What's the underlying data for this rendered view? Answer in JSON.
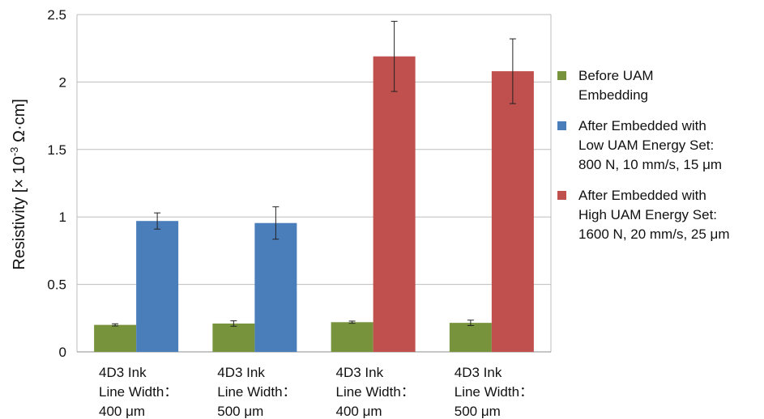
{
  "chart_data": {
    "type": "bar",
    "ylabel_main": "Resistivity [× 10",
    "ylabel_exp": "-3",
    "ylabel_unit": " Ω·cm]",
    "ylim": [
      0,
      2.5
    ],
    "yticks": [
      "0",
      "0.5",
      "1",
      "1.5",
      "2",
      "2.5"
    ],
    "grid": true,
    "legend_placement": "right",
    "categories": [
      [
        "4D3 Ink",
        "Line Width：",
        "400 μm"
      ],
      [
        "4D3 Ink",
        "Line Width：",
        "500 μm"
      ],
      [
        "4D3 Ink",
        "Line Width：",
        "400 μm"
      ],
      [
        "4D3 Ink",
        "Line Width：",
        "500 μm"
      ]
    ],
    "series": [
      {
        "name_lines": [
          "Before UAM",
          "Embedding"
        ],
        "color": "#77933c",
        "values": [
          0.2,
          0.21,
          0.22,
          0.215
        ],
        "errors": [
          0.008,
          0.02,
          0.008,
          0.02
        ]
      },
      {
        "name_lines": [
          "After Embedded with",
          "Low UAM Energy Set:",
          "800 N, 10 mm/s, 15 μm"
        ],
        "color": "#4a7ebb",
        "values": [
          0.97,
          0.955,
          null,
          null
        ],
        "errors": [
          0.06,
          0.12,
          null,
          null
        ]
      },
      {
        "name_lines": [
          "After Embedded with",
          "High UAM Energy Set:",
          "1600 N, 20 mm/s, 25 μm"
        ],
        "color": "#c0504d",
        "values": [
          null,
          null,
          2.19,
          2.08
        ],
        "errors": [
          null,
          null,
          0.26,
          0.24
        ]
      }
    ]
  }
}
